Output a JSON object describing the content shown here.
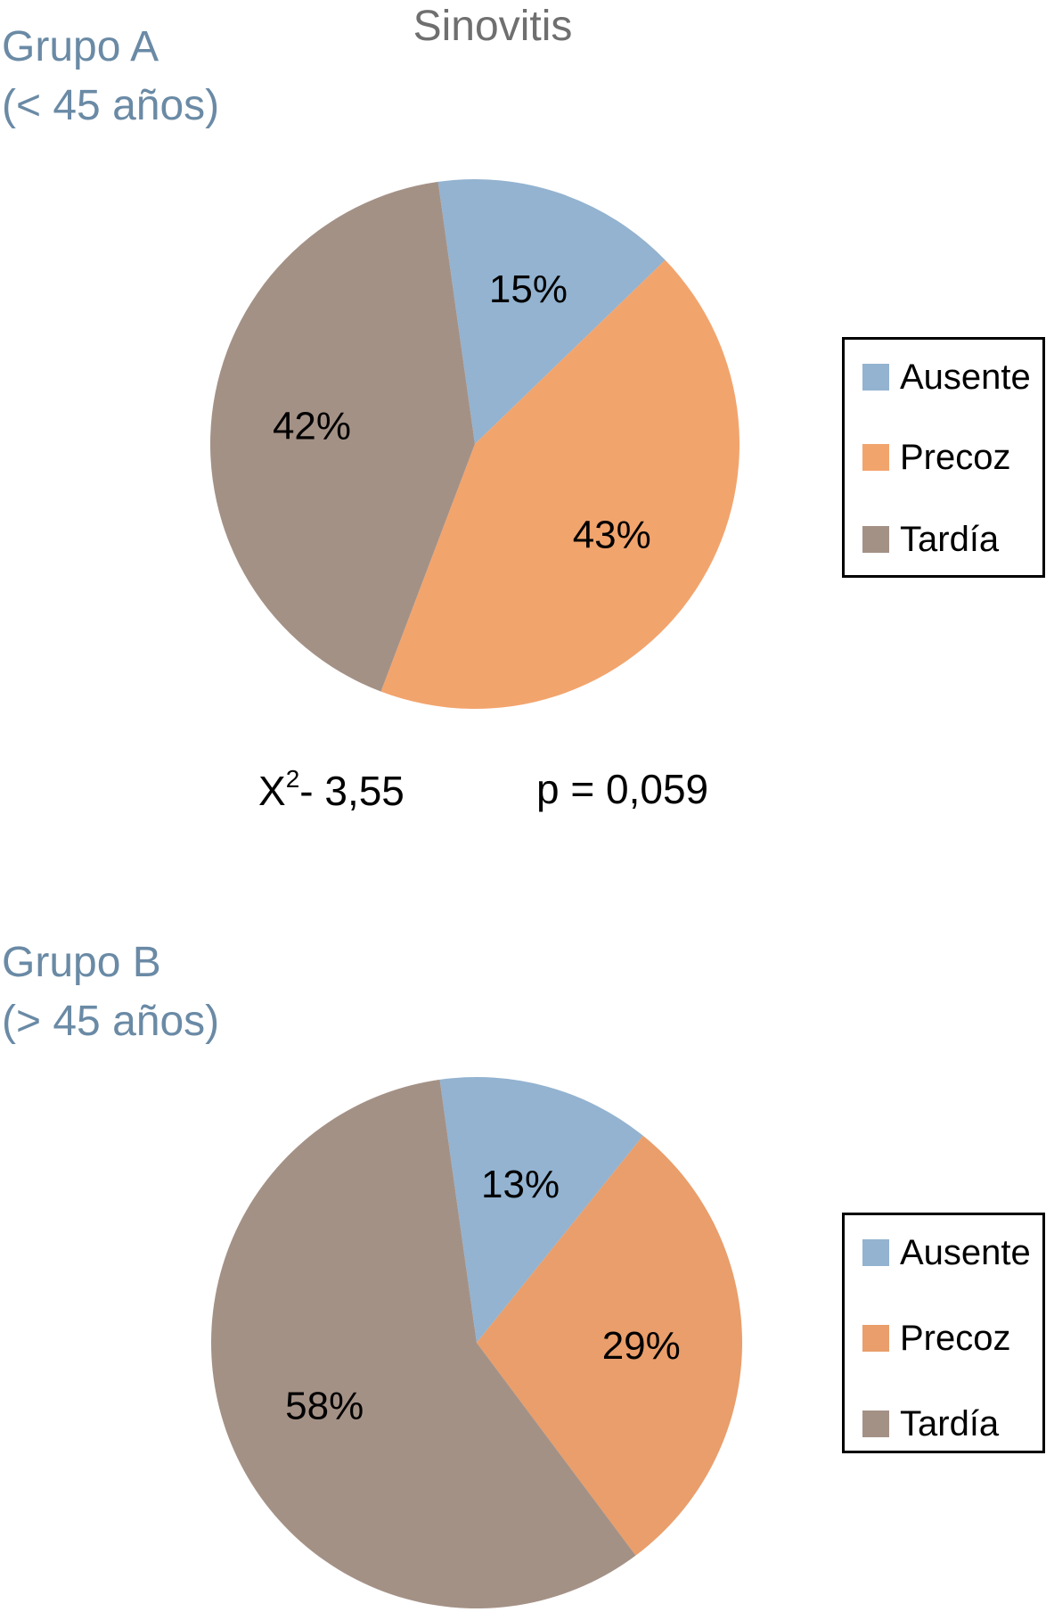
{
  "chart_data": [
    {
      "type": "pie",
      "title": "Sinovitis",
      "group_title_line1": "Grupo A",
      "group_title_line2": "(< 45 años)",
      "categories": [
        "Ausente",
        "Precoz",
        "Tardía"
      ],
      "values": [
        15,
        43,
        42
      ],
      "data_labels": [
        "15%",
        "43%",
        "42%"
      ],
      "colors": [
        "#93b3d0",
        "#f2a46d",
        "#a49186"
      ],
      "legend_placement": "right"
    },
    {
      "type": "pie",
      "group_title_line1": "Grupo B",
      "group_title_line2": "(> 45 años)",
      "categories": [
        "Ausente",
        "Precoz",
        "Tardía"
      ],
      "values": [
        13,
        29,
        58
      ],
      "data_labels": [
        "13%",
        "29%",
        "58%"
      ],
      "colors": [
        "#93b3d0",
        "#e99e6b",
        "#a49186"
      ],
      "legend_placement": "right"
    }
  ],
  "stats": {
    "chi_symbol": "X",
    "chi_exponent": "2",
    "chi_value": "- 3,55",
    "p_text": "p = 0,059"
  }
}
